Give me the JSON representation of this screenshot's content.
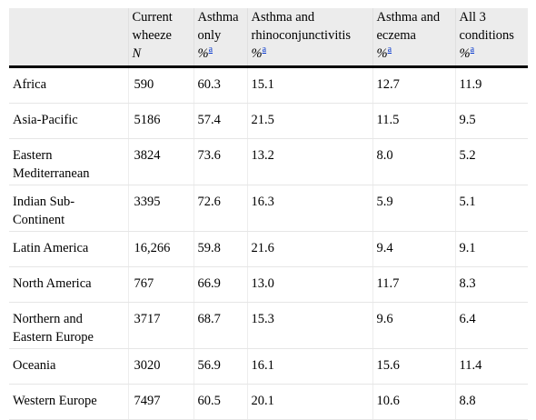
{
  "table": {
    "columns": [
      {
        "lines": [
          "Current",
          "wheeze"
        ],
        "unit": "N",
        "footnote": ""
      },
      {
        "lines": [
          "Asthma",
          "only"
        ],
        "unit": "%",
        "footnote": "a"
      },
      {
        "lines": [
          "Asthma and",
          "rhinoconjunctivitis"
        ],
        "unit": "%",
        "footnote": "a"
      },
      {
        "lines": [
          "Asthma and",
          "eczema"
        ],
        "unit": "%",
        "footnote": "a"
      },
      {
        "lines": [
          "All 3",
          "conditions"
        ],
        "unit": "%",
        "footnote": "a"
      }
    ],
    "rows": [
      {
        "region": "Africa",
        "values": [
          "590",
          "60.3",
          "15.1",
          "12.7",
          "11.9"
        ]
      },
      {
        "region": "Asia-Pacific",
        "values": [
          "5186",
          "57.4",
          "21.5",
          "11.5",
          "9.5"
        ]
      },
      {
        "region": "Eastern Mediterranean",
        "values": [
          "3824",
          "73.6",
          "13.2",
          "8.0",
          "5.2"
        ]
      },
      {
        "region": "Indian Sub-Continent",
        "values": [
          "3395",
          "72.6",
          "16.3",
          "5.9",
          "5.1"
        ]
      },
      {
        "region": "Latin America",
        "values": [
          "16,266",
          "59.8",
          "21.6",
          "9.4",
          "9.1"
        ]
      },
      {
        "region": "North America",
        "values": [
          "767",
          "66.9",
          "13.0",
          "11.7",
          "8.3"
        ]
      },
      {
        "region": "Northern and Eastern Europe",
        "values": [
          "3717",
          "68.7",
          "15.3",
          "9.6",
          "6.4"
        ]
      },
      {
        "region": "Oceania",
        "values": [
          "3020",
          "56.9",
          "16.1",
          "15.6",
          "11.4"
        ]
      },
      {
        "region": "Western Europe",
        "values": [
          "7497",
          "60.5",
          "20.1",
          "10.6",
          "8.8"
        ]
      }
    ]
  }
}
